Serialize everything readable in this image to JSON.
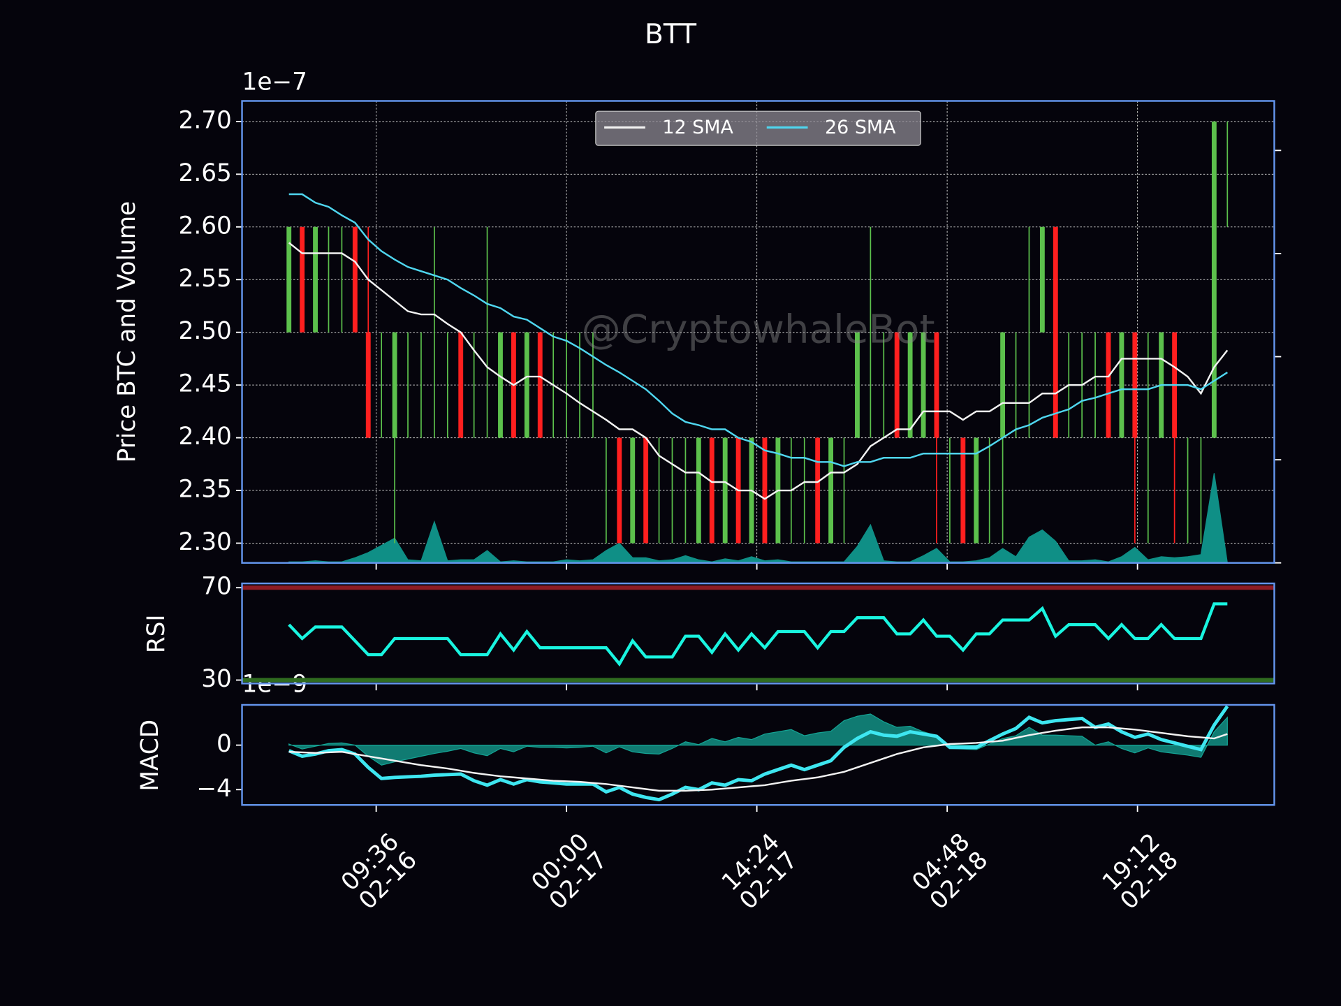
{
  "chart_data": [
    {
      "type": "candlestick",
      "title": "BTT",
      "ylabel": "Price BTC and Volume",
      "offset_label": "1e−7",
      "watermark": "@CryptowhaleBot",
      "x": [
        "02-16 03:00",
        "02-16 04:00",
        "02-16 05:00",
        "02-16 06:00",
        "02-16 07:00",
        "02-16 08:00",
        "02-16 09:00",
        "02-16 10:00",
        "02-16 11:00",
        "02-16 12:00",
        "02-16 13:00",
        "02-16 14:00",
        "02-16 15:00",
        "02-16 16:00",
        "02-16 17:00",
        "02-16 18:00",
        "02-16 19:00",
        "02-16 20:00",
        "02-16 21:00",
        "02-16 22:00",
        "02-16 23:00",
        "02-17 00:00",
        "02-17 01:00",
        "02-17 02:00",
        "02-17 03:00",
        "02-17 04:00",
        "02-17 05:00",
        "02-17 06:00",
        "02-17 07:00",
        "02-17 08:00",
        "02-17 09:00",
        "02-17 10:00",
        "02-17 11:00",
        "02-17 12:00",
        "02-17 13:00",
        "02-17 14:00",
        "02-17 15:00",
        "02-17 16:00",
        "02-17 17:00",
        "02-17 18:00",
        "02-17 19:00",
        "02-17 20:00",
        "02-17 21:00",
        "02-17 22:00",
        "02-17 23:00",
        "02-18 00:00",
        "02-18 01:00",
        "02-18 02:00",
        "02-18 03:00",
        "02-18 04:00",
        "02-18 05:00",
        "02-18 06:00",
        "02-18 07:00",
        "02-18 08:00",
        "02-18 09:00",
        "02-18 10:00",
        "02-18 11:00",
        "02-18 12:00",
        "02-18 13:00",
        "02-18 14:00",
        "02-18 15:00",
        "02-18 16:00",
        "02-18 17:00",
        "02-18 18:00",
        "02-18 19:00",
        "02-18 20:00",
        "02-18 21:00",
        "02-18 22:00",
        "02-18 23:00",
        "02-19 00:00",
        "02-19 01:00",
        "02-19 02:00"
      ],
      "xlim": [
        "02-15 23:27",
        "02-19 05:33"
      ],
      "xticks": [
        {
          "value": "02-16 09:36",
          "label": "09:36\n02-16"
        },
        {
          "value": "02-17 00:00",
          "label": "00:00\n02-17"
        },
        {
          "value": "02-17 14:24",
          "label": "14:24\n02-17"
        },
        {
          "value": "02-18 04:48",
          "label": "04:48\n02-18"
        },
        {
          "value": "02-18 19:12",
          "label": "19:12\n02-18"
        }
      ],
      "ylim": [
        2.2813,
        2.7195
      ],
      "yticks": [
        {
          "value": 2.3,
          "label": "2.30"
        },
        2.35,
        {
          "value": 2.4,
          "label": "2.40"
        },
        2.45,
        {
          "value": 2.5,
          "label": "2.50"
        },
        2.55,
        {
          "value": 2.6,
          "label": "2.60"
        },
        2.65,
        {
          "value": 2.7,
          "label": "2.70"
        }
      ],
      "grid": true,
      "up_color": "#5cc04c",
      "down_color": "#ff1f1f",
      "open": [
        2.5,
        2.6,
        2.5,
        2.5,
        2.5,
        2.6,
        2.5,
        2.4,
        2.4,
        2.4,
        2.4,
        2.4,
        2.4,
        2.5,
        2.4,
        2.4,
        2.4,
        2.5,
        2.4,
        2.5,
        2.4,
        2.4,
        2.4,
        2.4,
        2.3,
        2.4,
        2.3,
        2.4,
        2.3,
        2.3,
        2.3,
        2.3,
        2.4,
        2.3,
        2.4,
        2.3,
        2.4,
        2.3,
        2.3,
        2.3,
        2.4,
        2.3,
        2.3,
        2.4,
        2.4,
        2.4,
        2.5,
        2.4,
        2.4,
        2.5,
        2.3,
        2.4,
        2.3,
        2.3,
        2.4,
        2.4,
        2.4,
        2.5,
        2.6,
        2.4,
        2.4,
        2.4,
        2.5,
        2.4,
        2.5,
        2.3,
        2.4,
        2.5,
        2.3,
        2.3,
        2.4,
        2.6
      ],
      "high": [
        2.6,
        2.6,
        2.6,
        2.6,
        2.6,
        2.6,
        2.6,
        2.5,
        2.5,
        2.5,
        2.5,
        2.6,
        2.5,
        2.5,
        2.5,
        2.6,
        2.5,
        2.5,
        2.5,
        2.5,
        2.5,
        2.5,
        2.5,
        2.5,
        2.4,
        2.4,
        2.4,
        2.4,
        2.4,
        2.4,
        2.4,
        2.4,
        2.4,
        2.4,
        2.4,
        2.4,
        2.4,
        2.4,
        2.4,
        2.4,
        2.4,
        2.4,
        2.4,
        2.5,
        2.6,
        2.5,
        2.5,
        2.5,
        2.5,
        2.5,
        2.4,
        2.4,
        2.4,
        2.4,
        2.5,
        2.5,
        2.6,
        2.6,
        2.6,
        2.5,
        2.5,
        2.5,
        2.5,
        2.5,
        2.5,
        2.5,
        2.5,
        2.5,
        2.4,
        2.4,
        2.7,
        2.7
      ],
      "low": [
        2.5,
        2.5,
        2.5,
        2.5,
        2.5,
        2.5,
        2.4,
        2.4,
        2.3,
        2.4,
        2.4,
        2.4,
        2.4,
        2.4,
        2.4,
        2.4,
        2.4,
        2.4,
        2.4,
        2.4,
        2.4,
        2.4,
        2.4,
        2.4,
        2.3,
        2.3,
        2.3,
        2.3,
        2.3,
        2.3,
        2.3,
        2.3,
        2.3,
        2.3,
        2.3,
        2.3,
        2.3,
        2.3,
        2.3,
        2.3,
        2.3,
        2.3,
        2.3,
        2.4,
        2.4,
        2.4,
        2.4,
        2.4,
        2.4,
        2.3,
        2.3,
        2.3,
        2.3,
        2.3,
        2.3,
        2.4,
        2.4,
        2.5,
        2.4,
        2.4,
        2.4,
        2.4,
        2.4,
        2.4,
        2.3,
        2.3,
        2.4,
        2.3,
        2.3,
        2.3,
        2.4,
        2.6
      ],
      "close": [
        2.6,
        2.5,
        2.6,
        2.5,
        2.5,
        2.5,
        2.4,
        2.4,
        2.5,
        2.4,
        2.4,
        2.4,
        2.4,
        2.4,
        2.4,
        2.4,
        2.5,
        2.4,
        2.5,
        2.4,
        2.4,
        2.4,
        2.4,
        2.4,
        2.3,
        2.3,
        2.4,
        2.3,
        2.3,
        2.3,
        2.3,
        2.4,
        2.3,
        2.4,
        2.3,
        2.4,
        2.3,
        2.4,
        2.3,
        2.3,
        2.3,
        2.4,
        2.3,
        2.5,
        2.4,
        2.4,
        2.4,
        2.5,
        2.5,
        2.4,
        2.3,
        2.3,
        2.4,
        2.3,
        2.5,
        2.4,
        2.4,
        2.6,
        2.4,
        2.4,
        2.4,
        2.4,
        2.4,
        2.5,
        2.4,
        2.3,
        2.5,
        2.4,
        2.3,
        2.3,
        2.7,
        2.6
      ],
      "series": [
        {
          "name": "12 SMA",
          "color": "#f2f2f2",
          "values": [
            2.585,
            2.575,
            2.575,
            2.575,
            2.575,
            2.567,
            2.55,
            2.54,
            2.53,
            2.52,
            2.517,
            2.517,
            2.508,
            2.5,
            2.483,
            2.467,
            2.458,
            2.45,
            2.458,
            2.458,
            2.45,
            2.442,
            2.433,
            2.425,
            2.417,
            2.408,
            2.408,
            2.4,
            2.383,
            2.375,
            2.367,
            2.367,
            2.358,
            2.358,
            2.35,
            2.35,
            2.342,
            2.35,
            2.35,
            2.358,
            2.358,
            2.367,
            2.367,
            2.375,
            2.392,
            2.4,
            2.408,
            2.408,
            2.425,
            2.425,
            2.425,
            2.417,
            2.425,
            2.425,
            2.433,
            2.433,
            2.433,
            2.442,
            2.442,
            2.45,
            2.45,
            2.458,
            2.458,
            2.475,
            2.475,
            2.475,
            2.475,
            2.467,
            2.458,
            2.442,
            2.467,
            2.483
          ]
        },
        {
          "name": "26 SMA",
          "color": "#4fd6ef",
          "values": [
            2.631,
            2.631,
            2.623,
            2.619,
            2.611,
            2.604,
            2.588,
            2.577,
            2.569,
            2.562,
            2.558,
            2.554,
            2.55,
            2.542,
            2.535,
            2.527,
            2.523,
            2.515,
            2.512,
            2.504,
            2.496,
            2.492,
            2.485,
            2.477,
            2.469,
            2.462,
            2.454,
            2.446,
            2.435,
            2.423,
            2.415,
            2.412,
            2.408,
            2.408,
            2.4,
            2.396,
            2.388,
            2.385,
            2.381,
            2.381,
            2.377,
            2.377,
            2.373,
            2.377,
            2.377,
            2.381,
            2.381,
            2.381,
            2.385,
            2.385,
            2.385,
            2.385,
            2.385,
            2.392,
            2.4,
            2.408,
            2.412,
            2.419,
            2.423,
            2.427,
            2.435,
            2.438,
            2.442,
            2.446,
            2.446,
            2.446,
            2.45,
            2.45,
            2.45,
            2.446,
            2.454,
            2.462
          ]
        }
      ],
      "legend": "upper center",
      "volume": {
        "color": "#0f8f86",
        "axis": "y2",
        "values": [
          0.01,
          0.01,
          0.02,
          0.01,
          0.01,
          0.05,
          0.1,
          0.17,
          0.24,
          0.03,
          0.02,
          0.4,
          0.02,
          0.03,
          0.03,
          0.12,
          0.01,
          0.02,
          0.01,
          0.01,
          0.01,
          0.03,
          0.02,
          0.03,
          0.12,
          0.19,
          0.05,
          0.05,
          0.02,
          0.03,
          0.07,
          0.03,
          0.01,
          0.04,
          0.02,
          0.06,
          0.02,
          0.03,
          0.01,
          0.01,
          0.01,
          0.01,
          0.01,
          0.16,
          0.37,
          0.02,
          0.01,
          0.01,
          0.07,
          0.14,
          0.01,
          0.01,
          0.02,
          0.05,
          0.14,
          0.06,
          0.25,
          0.32,
          0.21,
          0.02,
          0.02,
          0.03,
          0.01,
          0.06,
          0.15,
          0.03,
          0.06,
          0.05,
          0.06,
          0.08,
          0.87,
          0
        ]
      },
      "y2lim": [
        0,
        4.48
      ],
      "y2ticks": [
        0,
        1,
        2,
        3,
        4
      ]
    },
    {
      "type": "line",
      "ylabel": "RSI",
      "ylim": [
        28.52,
        71.85
      ],
      "yticks": [
        30,
        70
      ],
      "bands": [
        {
          "value": 70,
          "color": "#8e1c24"
        },
        {
          "value": 30,
          "color": "#2f6b1f"
        }
      ],
      "color": "#19f5e0",
      "values": [
        54,
        48,
        53,
        53,
        53,
        47,
        41,
        41,
        48,
        48,
        48,
        48,
        48,
        41,
        41,
        41,
        50,
        43,
        51,
        44,
        44,
        44,
        44,
        44,
        44,
        37,
        47,
        40,
        40,
        40,
        49,
        49,
        42,
        50,
        43,
        50,
        44,
        51,
        51,
        51,
        44,
        51,
        51,
        57,
        57,
        57,
        50,
        50,
        56,
        49,
        49,
        43,
        50,
        50,
        56,
        56,
        56,
        61,
        49,
        54,
        54,
        54,
        48,
        54,
        48,
        48,
        54,
        48,
        48,
        48,
        63,
        63
      ]
    },
    {
      "type": "macd",
      "ylabel": "MACD",
      "offset_label": "1e−9",
      "ylim": [
        -5.38,
        3.62
      ],
      "yticks": [
        {
          "value": -4,
          "label": "−4"
        },
        0
      ],
      "macd": {
        "color": "#3ee6f0",
        "values": [
          -0.5,
          -1.0,
          -0.8,
          -0.5,
          -0.4,
          -0.8,
          -2.0,
          -3.0,
          -2.9,
          -2.85,
          -2.8,
          -2.7,
          -2.65,
          -2.6,
          -3.2,
          -3.6,
          -3.1,
          -3.5,
          -3.1,
          -3.3,
          -3.4,
          -3.5,
          -3.5,
          -3.5,
          -4.2,
          -3.8,
          -4.4,
          -4.7,
          -4.9,
          -4.4,
          -3.8,
          -4.0,
          -3.4,
          -3.6,
          -3.1,
          -3.2,
          -2.6,
          -2.2,
          -1.8,
          -2.2,
          -1.8,
          -1.4,
          -0.2,
          0.6,
          1.2,
          0.9,
          0.8,
          1.2,
          1.0,
          0.8,
          -0.2,
          -0.2,
          -0.2,
          0.4,
          1.0,
          1.5,
          2.5,
          2.0,
          2.2,
          2.3,
          2.4,
          1.6,
          1.9,
          1.2,
          0.7,
          1.0,
          0.5,
          0.2,
          -0.1,
          -0.4,
          1.8,
          3.5
        ]
      },
      "signal": {
        "color": "#f2f2f2",
        "values": [
          -0.6,
          -0.65,
          -0.7,
          -0.65,
          -0.6,
          -0.8,
          -1.0,
          -1.2,
          -1.4,
          -1.6,
          -1.8,
          -1.95,
          -2.1,
          -2.3,
          -2.5,
          -2.65,
          -2.8,
          -2.9,
          -3.0,
          -3.1,
          -3.2,
          -3.25,
          -3.3,
          -3.4,
          -3.5,
          -3.65,
          -3.8,
          -3.95,
          -4.1,
          -4.1,
          -4.1,
          -4.05,
          -4.0,
          -3.9,
          -3.8,
          -3.7,
          -3.6,
          -3.4,
          -3.2,
          -3.05,
          -2.9,
          -2.65,
          -2.4,
          -2.0,
          -1.6,
          -1.2,
          -0.8,
          -0.5,
          -0.2,
          -0.05,
          0.1,
          0.15,
          0.2,
          0.3,
          0.4,
          0.65,
          0.9,
          1.1,
          1.3,
          1.45,
          1.6,
          1.6,
          1.6,
          1.5,
          1.4,
          1.25,
          1.1,
          0.95,
          0.8,
          0.7,
          0.6,
          1.0
        ]
      },
      "histogram": {
        "color": "#14a394",
        "values": [
          0.1,
          -0.35,
          -0.1,
          0.15,
          0.2,
          0,
          -1.0,
          -1.8,
          -1.5,
          -1.25,
          -1.0,
          -0.75,
          -0.55,
          -0.3,
          -0.7,
          -0.95,
          -0.3,
          -0.6,
          -0.1,
          -0.2,
          -0.2,
          -0.25,
          -0.2,
          -0.1,
          -0.7,
          -0.15,
          -0.6,
          -0.75,
          -0.8,
          -0.3,
          0.3,
          0.05,
          0.6,
          0.3,
          0.7,
          0.5,
          1.0,
          1.2,
          1.4,
          0.85,
          1.1,
          1.25,
          2.2,
          2.6,
          2.8,
          2.1,
          1.6,
          1.7,
          1.2,
          0.85,
          -0.3,
          -0.35,
          -0.4,
          0.1,
          0.6,
          0.85,
          1.6,
          0.9,
          0.9,
          0.85,
          0.8,
          0,
          0.3,
          -0.3,
          -0.7,
          -0.25,
          -0.6,
          -0.75,
          -0.9,
          -1.1,
          1.2,
          2.5
        ]
      }
    }
  ]
}
